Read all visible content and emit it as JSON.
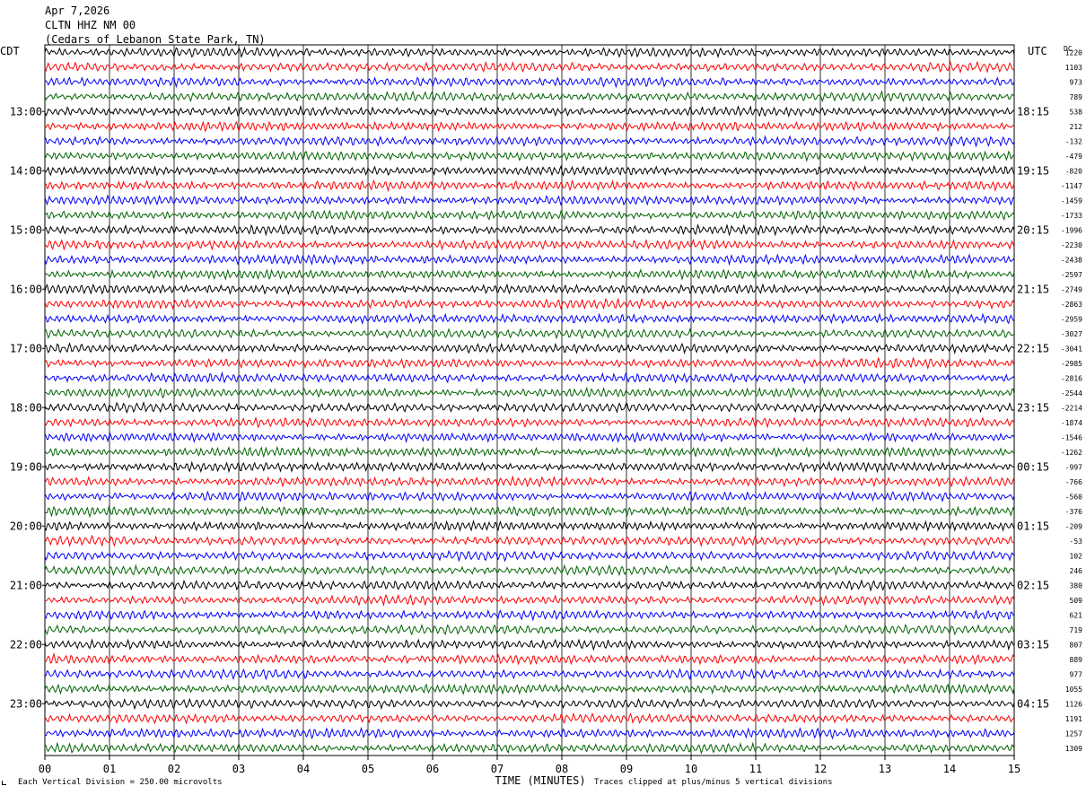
{
  "header": {
    "date": "Apr 7,2026",
    "station": "CLTN HHZ NM 00",
    "location": "(Cedars of Lebanon State Park, TN)"
  },
  "chart_data": {
    "type": "line",
    "title": "",
    "xlabel": "TIME (MINUTES)",
    "ylabel": "",
    "left_axis_label": "CDT",
    "right_axis_label": "UTC",
    "dc_header": "DC",
    "x_ticks": [
      "00",
      "01",
      "02",
      "03",
      "04",
      "05",
      "06",
      "07",
      "08",
      "09",
      "10",
      "11",
      "12",
      "13",
      "14",
      "15"
    ],
    "xlim": [
      0,
      15
    ],
    "trace_count": 48,
    "trace_colors": [
      "#000000",
      "#ff0000",
      "#0000ff",
      "#006400"
    ],
    "left_time_labels": [
      "13:00",
      "14:00",
      "15:00",
      "16:00",
      "17:00",
      "18:00",
      "19:00",
      "20:00",
      "21:00",
      "22:00",
      "23:00"
    ],
    "right_time_labels": [
      "18:15",
      "19:15",
      "20:15",
      "21:15",
      "22:15",
      "23:15",
      "00:15",
      "01:15",
      "02:15",
      "03:15",
      "04:15"
    ],
    "first_labeled_trace": 4,
    "traces_per_hour": 4,
    "dc_offsets": [
      "1220",
      "1103",
      "973",
      "789",
      "538",
      "212",
      "-132",
      "-479",
      "-820",
      "-1147",
      "-1459",
      "-1733",
      "-1996",
      "-2230",
      "-2438",
      "-2597",
      "-2749",
      "-2863",
      "-2959",
      "-3027",
      "-3041",
      "-2985",
      "-2816",
      "-2544",
      "-2214",
      "-1874",
      "-1546",
      "-1262",
      "-997",
      "-766",
      "-560",
      "-376",
      "-209",
      "-53",
      "102",
      "246",
      "380",
      "509",
      "621",
      "719",
      "807",
      "889",
      "977",
      "1055",
      "1126",
      "1191",
      "1257",
      "1309"
    ],
    "grid": "vertical"
  },
  "footer": {
    "scale_note": "Each Vertical Division =  250.00 microvolts",
    "clip_note": "Traces clipped at plus/minus 5 vertical divisions"
  }
}
